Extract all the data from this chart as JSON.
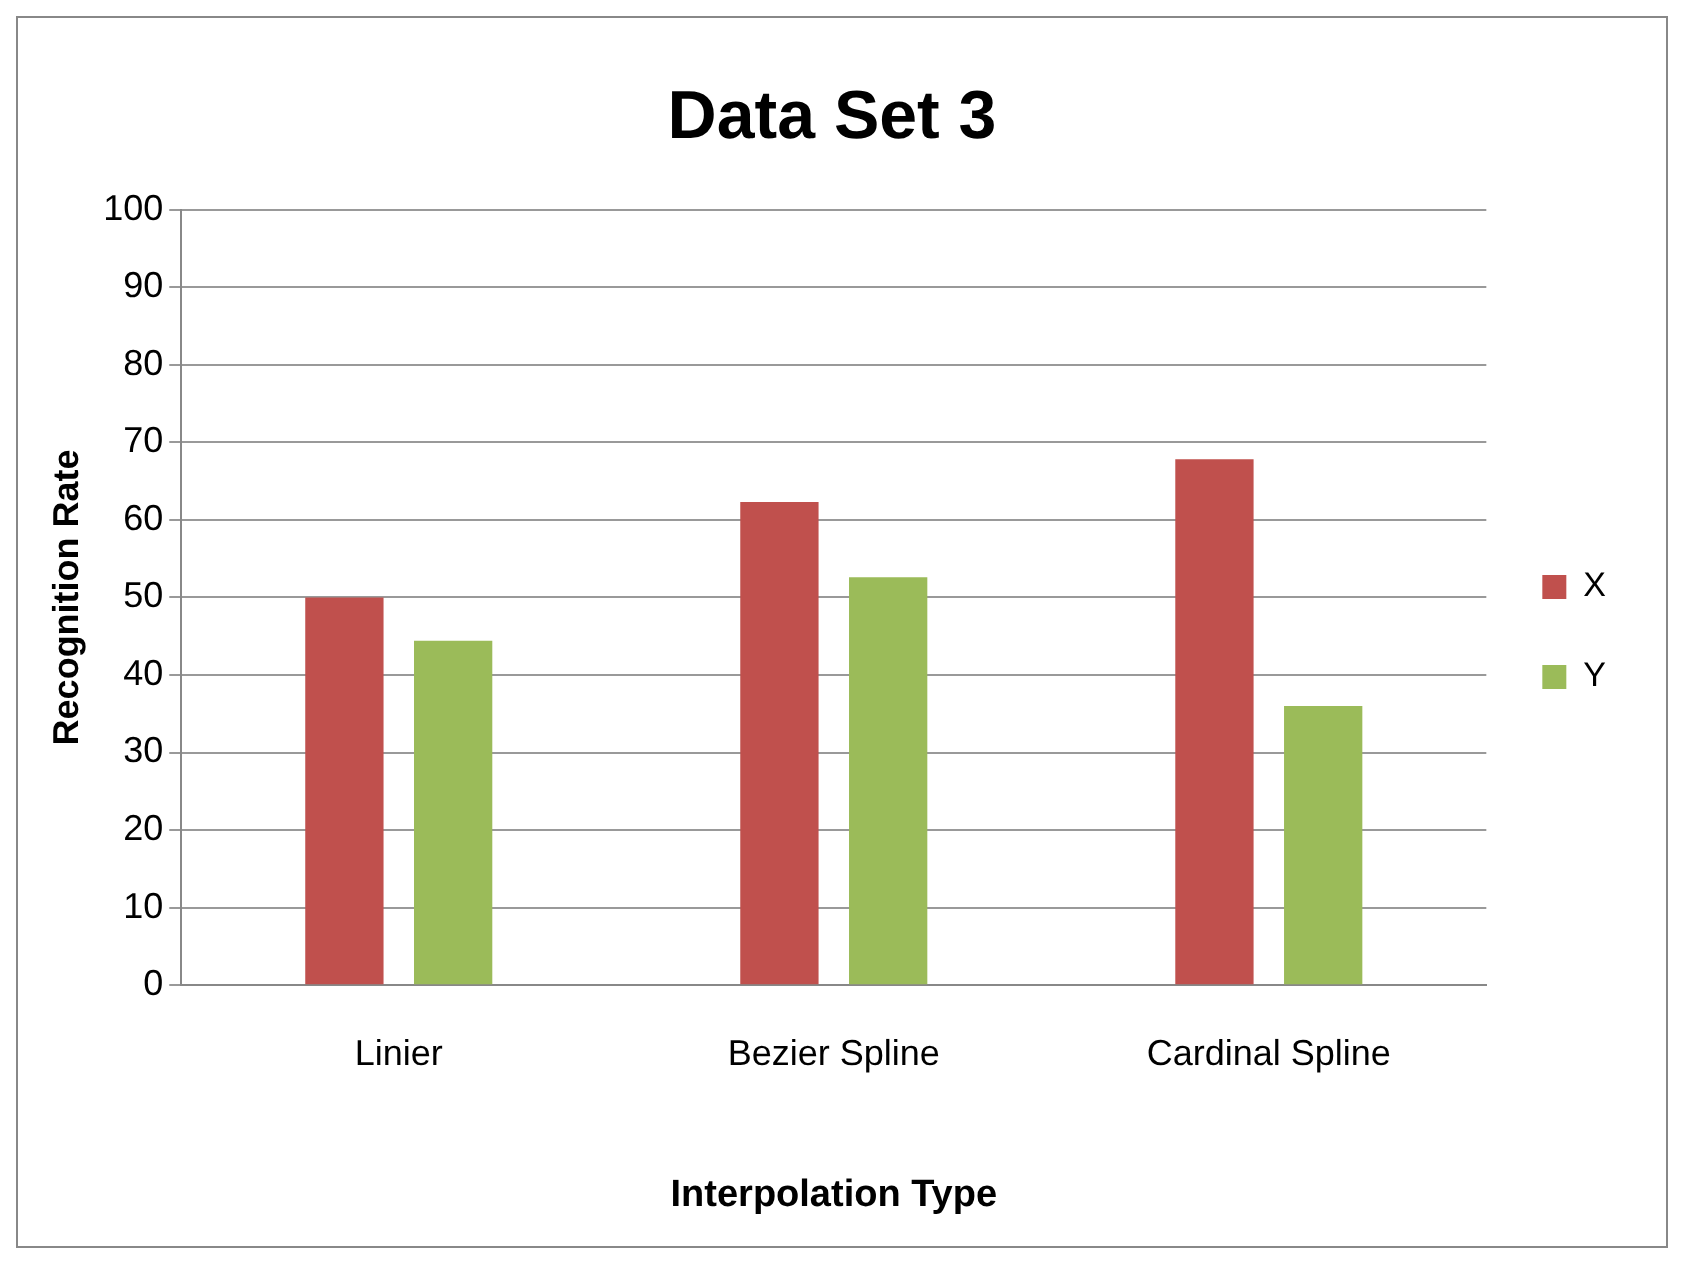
{
  "chart_data": {
    "type": "bar",
    "title": "Data Set 3",
    "xlabel": "Interpolation Type",
    "ylabel": "Recognition Rate",
    "categories": [
      "Linier",
      "Bezier Spline",
      "Cardinal Spline"
    ],
    "series": [
      {
        "name": "X",
        "color": "#c0504d",
        "values": [
          50,
          62.3,
          67.8
        ]
      },
      {
        "name": "Y",
        "color": "#9bbb59",
        "values": [
          44.4,
          52.6,
          36
        ]
      }
    ],
    "ylim": [
      0,
      100
    ],
    "yticks": [
      0,
      10,
      20,
      30,
      40,
      50,
      60,
      70,
      80,
      90,
      100
    ],
    "grid": "y",
    "legend": "right"
  }
}
